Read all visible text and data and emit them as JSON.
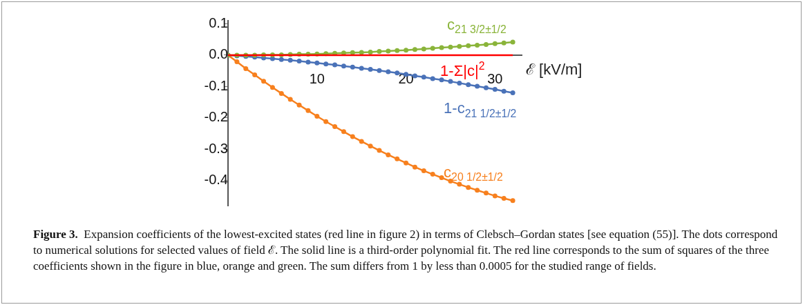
{
  "chart_data": {
    "type": "line",
    "xlabel": "ℰ [kV/m]",
    "x": [
      0,
      1,
      2,
      3,
      4,
      5,
      6,
      7,
      8,
      9,
      10,
      11,
      12,
      13,
      14,
      15,
      16,
      17,
      18,
      19,
      20,
      21,
      22,
      23,
      24,
      25,
      26,
      27,
      28,
      29,
      30,
      31,
      32
    ],
    "series": [
      {
        "name": "c$_{21 3/2±1/2}$",
        "color": "#8ab43a",
        "values": [
          0,
          0,
          0,
          0,
          0.001,
          0.001,
          0.001,
          0.002,
          0.003,
          0.003,
          0.004,
          0.005,
          0.006,
          0.007,
          0.008,
          0.009,
          0.01,
          0.012,
          0.013,
          0.015,
          0.016,
          0.018,
          0.02,
          0.022,
          0.024,
          0.026,
          0.028,
          0.03,
          0.032,
          0.034,
          0.037,
          0.039,
          0.042
        ]
      },
      {
        "name": "1-Σ|c|$^{2}$",
        "color": "#ff0000",
        "marker": "none",
        "values": [
          0,
          0,
          0,
          0,
          0,
          0,
          0,
          0,
          0,
          0,
          0,
          0,
          0,
          0,
          0,
          0,
          0,
          0,
          0,
          0,
          0,
          0,
          0,
          0,
          0,
          0,
          0,
          0,
          0,
          0,
          0,
          0,
          0
        ]
      },
      {
        "name": "1-c$_{21 1/2±1/2}$",
        "color": "#4a72b8",
        "values": [
          0,
          -0.002,
          -0.004,
          -0.006,
          -0.009,
          -0.011,
          -0.014,
          -0.016,
          -0.019,
          -0.022,
          -0.025,
          -0.028,
          -0.031,
          -0.035,
          -0.038,
          -0.042,
          -0.045,
          -0.049,
          -0.053,
          -0.057,
          -0.061,
          -0.066,
          -0.07,
          -0.075,
          -0.079,
          -0.084,
          -0.089,
          -0.094,
          -0.099,
          -0.104,
          -0.109,
          -0.115,
          -0.12
        ]
      },
      {
        "name": "c$_{20 1/2±1/2}$",
        "color": "#f7801e",
        "values": [
          0,
          -0.021,
          -0.043,
          -0.063,
          -0.083,
          -0.103,
          -0.122,
          -0.141,
          -0.159,
          -0.177,
          -0.195,
          -0.212,
          -0.228,
          -0.244,
          -0.26,
          -0.275,
          -0.29,
          -0.304,
          -0.318,
          -0.331,
          -0.344,
          -0.357,
          -0.369,
          -0.38,
          -0.391,
          -0.402,
          -0.412,
          -0.422,
          -0.431,
          -0.44,
          -0.449,
          -0.457,
          -0.464
        ]
      }
    ],
    "xlim": [
      0,
      33
    ],
    "xticks": [
      10,
      20,
      30
    ],
    "ylim": [
      -0.48,
      0.11
    ],
    "yticks": [
      0.1,
      {
        "value": 0,
        "label": "0.0"
      },
      -0.1,
      -0.2,
      -0.3,
      -0.4
    ],
    "grid": false,
    "legend": false,
    "marker": "circle",
    "line_style": "solid",
    "annotations": [
      "Figure 3.",
      "Expansion coefficients of the lowest-excited states (red line in figure 2) in terms of Clebsch–Gordan states [see equation (55)]. The dots correspond to numerical solutions for selected values of field ℰ. The solid line is a third-order polynomial fit. The red line corresponds to the sum of squares of the three coefficients shown in the figure in blue, orange and green. The sum differs from 1 by less than 0.0005 for the studied range of fields."
    ]
  }
}
